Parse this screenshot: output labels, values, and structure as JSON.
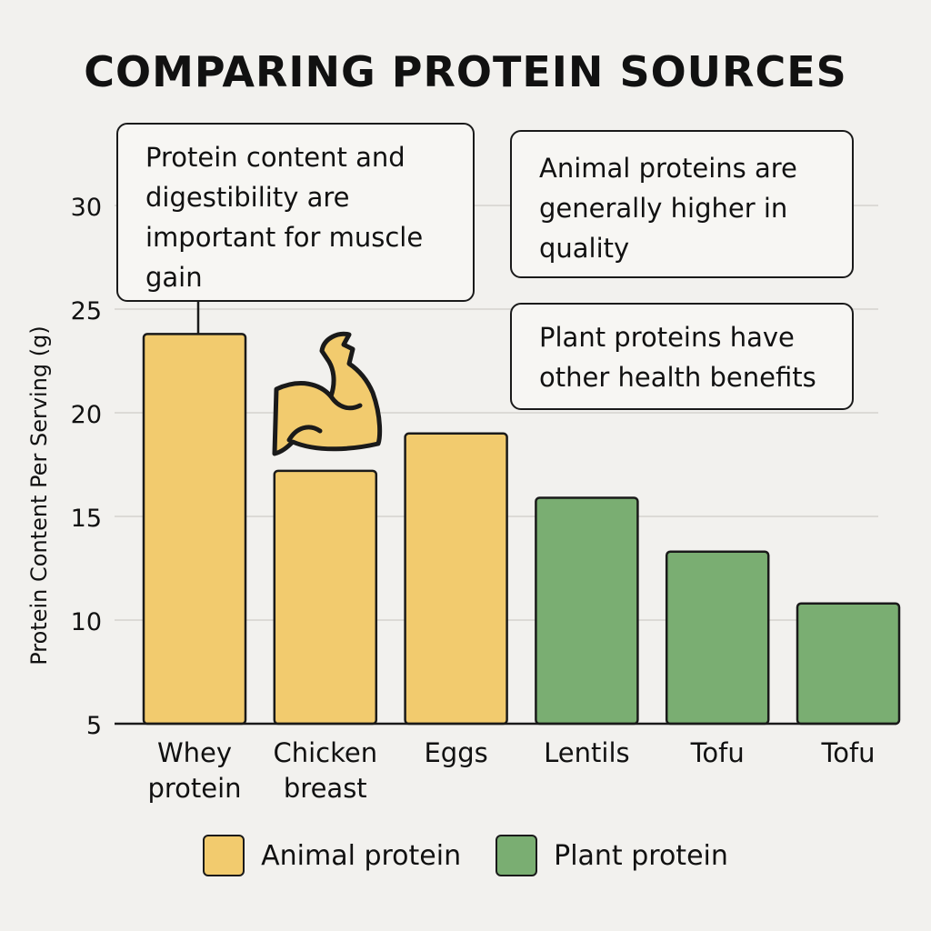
{
  "chart_data": {
    "type": "bar",
    "title": "COMPARING PROTEIN SOURCES",
    "xlabel": "",
    "ylabel": "Protein Content Per Serving (g)",
    "ylim": [
      5,
      31
    ],
    "yticks": [
      5,
      10,
      15,
      20,
      25,
      30
    ],
    "grid": true,
    "categories": [
      [
        "Whey",
        "protein"
      ],
      [
        "Chicken",
        "breast"
      ],
      [
        "Eggs"
      ],
      [
        "Lentils"
      ],
      [
        "Tofu"
      ],
      [
        "Tofu"
      ]
    ],
    "values": [
      23.8,
      17.2,
      19.0,
      15.9,
      13.3,
      10.8
    ],
    "groups": [
      "Animal protein",
      "Animal protein",
      "Animal protein",
      "Plant protein",
      "Plant protein",
      "Plant protein"
    ],
    "colors": {
      "Animal protein": "#f2cb6e",
      "Plant protein": "#7aae72"
    },
    "legend": {
      "placement": "bottom",
      "entries": [
        {
          "label": "Animal protein",
          "color": "#f2cb6e"
        },
        {
          "label": "Plant protein",
          "color": "#7aae72"
        }
      ]
    },
    "annotations": [
      "Protein content and digestibility are important for muscle gain",
      "Animal proteins are generally higher in quality",
      "Plant proteins have other health benefits"
    ],
    "icon": "flexed-arm-icon"
  }
}
